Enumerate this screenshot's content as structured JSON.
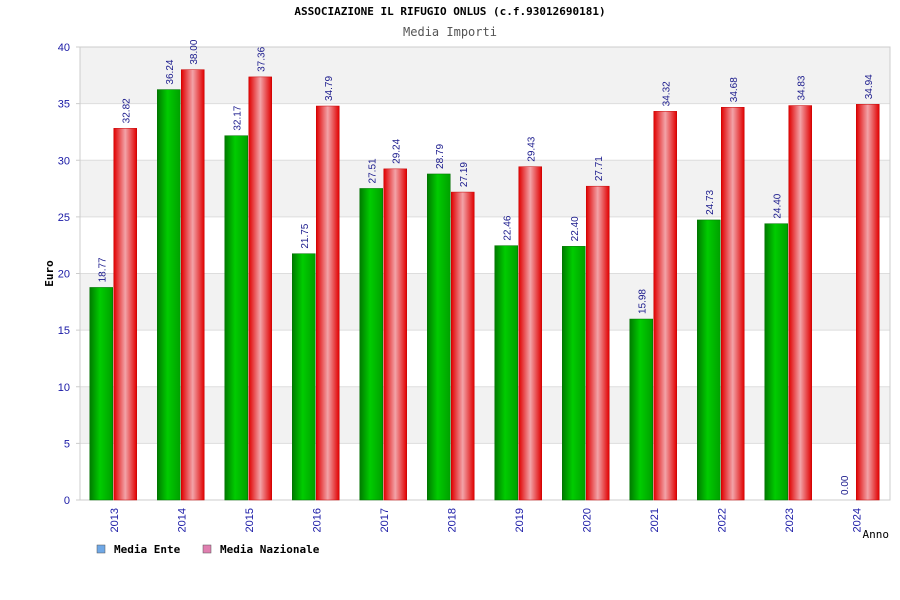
{
  "chart_data": {
    "type": "bar",
    "title": "ASSOCIAZIONE IL RIFUGIO ONLUS (c.f.93012690181)",
    "subtitle": "Media Importi",
    "xlabel": "Anno",
    "ylabel": "Euro",
    "ylim": [
      0,
      40
    ],
    "yticks": [
      "0",
      "5",
      "10",
      "15",
      "20",
      "25",
      "30",
      "35",
      "40"
    ],
    "grid": true,
    "legend_position": "bottom-left",
    "categories": [
      "2013",
      "2014",
      "2015",
      "2016",
      "2017",
      "2018",
      "2019",
      "2020",
      "2021",
      "2022",
      "2023",
      "2024"
    ],
    "series": [
      {
        "name": "Media Ente",
        "color": "#00aa00",
        "legend_color": "#6fa8e6",
        "values": [
          18.77,
          36.24,
          32.17,
          21.75,
          27.51,
          28.79,
          22.46,
          22.4,
          15.98,
          24.73,
          24.4,
          0.0
        ],
        "labels": [
          "18.77",
          "36.24",
          "32.17",
          "21.75",
          "27.51",
          "28.79",
          "22.46",
          "22.40",
          "15.98",
          "24.73",
          "24.40",
          "0.00"
        ]
      },
      {
        "name": "Media Nazionale",
        "color": "#ee1111",
        "legend_color": "#e07fb0",
        "values": [
          32.82,
          38.0,
          37.36,
          34.79,
          29.24,
          27.19,
          29.43,
          27.71,
          34.32,
          34.68,
          34.83,
          34.94
        ],
        "labels": [
          "32.82",
          "38.00",
          "37.36",
          "34.79",
          "29.24",
          "27.19",
          "29.43",
          "27.71",
          "34.32",
          "34.68",
          "34.83",
          "34.94"
        ]
      }
    ]
  }
}
